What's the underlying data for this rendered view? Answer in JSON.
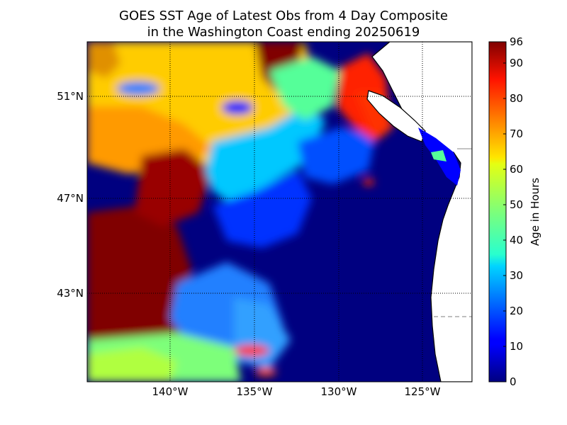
{
  "chart_data": {
    "type": "heatmap",
    "title": [
      "GOES SST Age of Latest Obs from 4 Day Composite",
      "in the Washington Coast ending 20250619"
    ],
    "x_ticks": [
      "140°W",
      "135°W",
      "130°W",
      "125°W"
    ],
    "y_ticks": [
      "51°N",
      "47°N",
      "43°N"
    ],
    "colorbar": {
      "label": "Age in Hours",
      "range": [
        0,
        96
      ],
      "ticks": [
        "0",
        "10",
        "20",
        "30",
        "40",
        "50",
        "60",
        "70",
        "80",
        "90",
        "96"
      ],
      "colormap": "jet"
    },
    "grid": true,
    "regions_age_hours": [
      {
        "area": "far west / northwest",
        "value": 96
      },
      {
        "area": "north-central band",
        "value": 65
      },
      {
        "area": "central transition",
        "value": 30
      },
      {
        "area": "coastal and southeast waters",
        "value": 3
      },
      {
        "area": "southwest",
        "value": 45
      },
      {
        "area": "north coastal strait",
        "value": 85
      }
    ]
  },
  "colors": {
    "land": "#ffffff",
    "coastline": "#000000",
    "grid": "#000000"
  }
}
